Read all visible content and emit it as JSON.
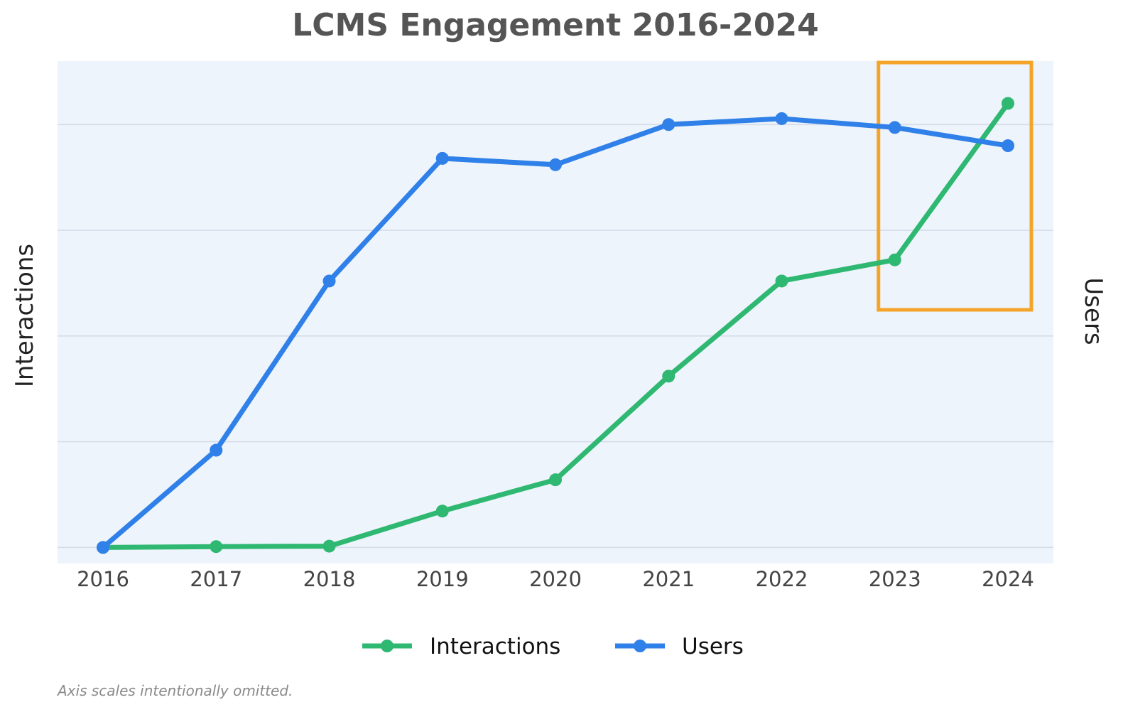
{
  "chart_data": {
    "type": "line",
    "title": "LCMS Engagement 2016-2024",
    "y_left_label": "Interactions",
    "y_right_label": "Users",
    "x": [
      "2016",
      "2017",
      "2018",
      "2019",
      "2020",
      "2021",
      "2022",
      "2023",
      "2024"
    ],
    "series": [
      {
        "name": "Interactions",
        "axis": "left",
        "color": "#2eb872",
        "values": [
          0.0,
          0.2,
          0.3,
          8.6,
          16.0,
          40.5,
          63.0,
          68.0,
          105.0
        ]
      },
      {
        "name": "Users",
        "axis": "right",
        "color": "#2f80e8",
        "values": [
          0.0,
          23.0,
          63.0,
          92.0,
          90.5,
          100.0,
          101.4,
          99.3,
          95.0
        ]
      }
    ],
    "y_range": [
      -3.8,
      115.0
    ],
    "highlight": {
      "from": "2023",
      "to": "2024",
      "color": "#f5a42a"
    },
    "axis_scales_shown": false,
    "grid": true,
    "legend_position": "bottom-center",
    "plot_background": "#eef4fb",
    "grid_color": "#d5dcea"
  },
  "note": "Axis scales intentionally omitted."
}
